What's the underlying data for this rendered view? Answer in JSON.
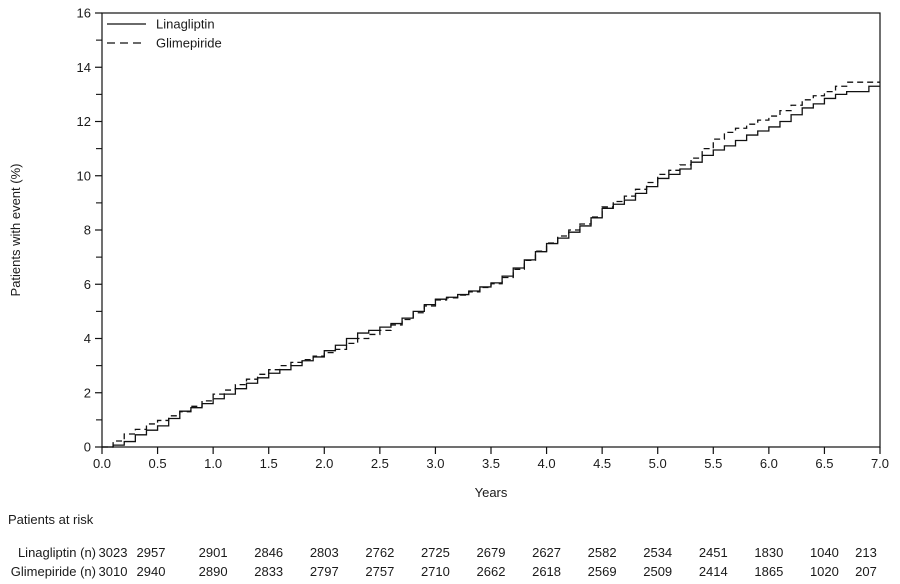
{
  "figure": {
    "background": "#ffffff",
    "text_color": "#1a1a1a",
    "line_color": "#111111"
  },
  "chart_data": {
    "type": "line",
    "subtype": "kaplan-meier-cumulative-incidence",
    "title": "",
    "xlabel": "Years",
    "ylabel": "Patients with event (%)",
    "xlim": [
      0,
      7
    ],
    "ylim": [
      0,
      16
    ],
    "grid": false,
    "x_ticks": [
      0,
      0.5,
      1,
      1.5,
      2,
      2.5,
      3,
      3.5,
      4,
      4.5,
      5,
      5.5,
      6,
      6.5,
      7
    ],
    "x_tick_labels": [
      "0.0",
      "0.5",
      "1.0",
      "1.5",
      "2.0",
      "2.5",
      "3.0",
      "3.5",
      "4.0",
      "4.5",
      "5.0",
      "5.5",
      "6.0",
      "6.5",
      "7.0"
    ],
    "y_ticks_major": [
      0,
      2,
      4,
      6,
      8,
      10,
      12,
      14,
      16
    ],
    "y_tick_labels": [
      "0",
      "2",
      "4",
      "6",
      "8",
      "10",
      "12",
      "14",
      "16"
    ],
    "y_ticks_minor": [
      1,
      3,
      5,
      7,
      9,
      11,
      13,
      15
    ],
    "legend": {
      "position": "top-left",
      "entries": [
        {
          "label": "Linagliptin",
          "style": "solid"
        },
        {
          "label": "Glimepiride",
          "style": "dashed"
        }
      ]
    },
    "step_interpolation": true,
    "x_start": 0,
    "x_step": 0.1,
    "series": [
      {
        "name": "Linagliptin",
        "style": "solid",
        "values": [
          0.0,
          0.07,
          0.2,
          0.45,
          0.62,
          0.78,
          1.05,
          1.32,
          1.45,
          1.6,
          1.78,
          1.95,
          2.15,
          2.35,
          2.55,
          2.72,
          2.85,
          3.0,
          3.18,
          3.32,
          3.55,
          3.75,
          4.0,
          4.2,
          4.3,
          4.42,
          4.55,
          4.75,
          5.0,
          5.25,
          5.45,
          5.52,
          5.62,
          5.75,
          5.9,
          6.05,
          6.3,
          6.6,
          6.9,
          7.2,
          7.5,
          7.7,
          7.92,
          8.15,
          8.45,
          8.8,
          8.95,
          9.1,
          9.35,
          9.6,
          9.9,
          10.05,
          10.25,
          10.5,
          10.75,
          10.95,
          11.1,
          11.3,
          11.5,
          11.65,
          11.8,
          12.0,
          12.25,
          12.5,
          12.65,
          12.85,
          13.0,
          13.1,
          13.1,
          13.3,
          13.3
        ]
      },
      {
        "name": "Glimepiride",
        "style": "dashed",
        "values": [
          0.0,
          0.22,
          0.48,
          0.65,
          0.85,
          0.98,
          1.15,
          1.3,
          1.5,
          1.7,
          1.95,
          2.1,
          2.3,
          2.5,
          2.68,
          2.85,
          3.0,
          3.12,
          3.22,
          3.35,
          3.48,
          3.6,
          3.82,
          4.0,
          4.15,
          4.3,
          4.5,
          4.7,
          4.95,
          5.2,
          5.42,
          5.5,
          5.6,
          5.72,
          5.88,
          6.02,
          6.25,
          6.55,
          6.88,
          7.22,
          7.52,
          7.78,
          8.0,
          8.22,
          8.48,
          8.85,
          9.05,
          9.25,
          9.5,
          9.75,
          10.05,
          10.2,
          10.4,
          10.65,
          11.0,
          11.35,
          11.6,
          11.75,
          11.9,
          12.05,
          12.2,
          12.4,
          12.6,
          12.8,
          12.95,
          13.1,
          13.3,
          13.45,
          13.45,
          13.45,
          13.45
        ]
      }
    ]
  },
  "risk_table": {
    "title": "Patients at risk",
    "rows": [
      {
        "label": "Linagliptin (n)",
        "counts": [
          "3023",
          "2957",
          "2901",
          "2846",
          "2803",
          "2762",
          "2725",
          "2679",
          "2627",
          "2582",
          "2534",
          "2451",
          "1830",
          "1040",
          "213"
        ]
      },
      {
        "label": "Glimepiride (n)",
        "counts": [
          "3010",
          "2940",
          "2890",
          "2833",
          "2797",
          "2757",
          "2710",
          "2662",
          "2618",
          "2569",
          "2509",
          "2414",
          "1865",
          "1020",
          "207"
        ]
      }
    ]
  }
}
